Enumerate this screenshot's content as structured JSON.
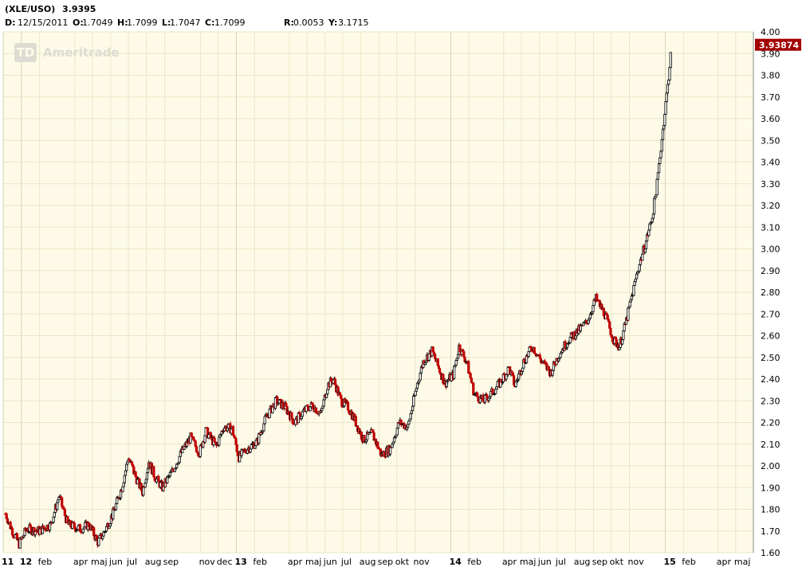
{
  "header": {
    "symbol": "(XLE/USO)",
    "last_value": "3.9395",
    "ohlc_prefix": "D:",
    "date": "12/15/2011",
    "open_label": "O:",
    "open": "1.7049",
    "high_label": "H:",
    "high": "1.7099",
    "low_label": "L:",
    "low": "1.7047",
    "close_label": "C:",
    "close": "1.7099",
    "range_label": "R:",
    "range": "0.0053",
    "y_label": "Y:",
    "y": "3.1715"
  },
  "watermark": {
    "logo_text": "TD",
    "brand_text": "Ameritrade"
  },
  "last_price_tag": "3.93874",
  "colors": {
    "background": "#ffffff",
    "plot_background": "#fdfbe8",
    "grid": "#ebe6c6",
    "major_grid": "#d8d2b4",
    "up": "#000000",
    "down": "#c00000",
    "price_tag": "#a30000"
  },
  "chart_data": {
    "type": "candlestick",
    "title": "",
    "xlabel": "",
    "ylabel": "",
    "ylim": [
      1.6,
      4.0
    ],
    "y_ticks": [
      "1.60",
      "1.70",
      "1.80",
      "1.90",
      "2.00",
      "2.10",
      "2.20",
      "2.30",
      "2.40",
      "2.50",
      "2.60",
      "2.70",
      "2.80",
      "2.90",
      "3.00",
      "3.10",
      "3.20",
      "3.30",
      "3.40",
      "3.50",
      "3.60",
      "3.70",
      "3.80",
      "3.90",
      "4.00"
    ],
    "x_ticks": [
      {
        "label": "11",
        "major": true
      },
      {
        "label": "12",
        "major": true
      },
      {
        "label": "feb",
        "major": false
      },
      {
        "label": "apr",
        "major": false
      },
      {
        "label": "maj",
        "major": false
      },
      {
        "label": "jun",
        "major": false
      },
      {
        "label": "jul",
        "major": false
      },
      {
        "label": "aug",
        "major": false
      },
      {
        "label": "sep",
        "major": false
      },
      {
        "label": "nov",
        "major": false
      },
      {
        "label": "dec",
        "major": false
      },
      {
        "label": "13",
        "major": true
      },
      {
        "label": "feb",
        "major": false
      },
      {
        "label": "apr",
        "major": false
      },
      {
        "label": "maj",
        "major": false
      },
      {
        "label": "jun",
        "major": false
      },
      {
        "label": "jul",
        "major": false
      },
      {
        "label": "aug",
        "major": false
      },
      {
        "label": "sep",
        "major": false
      },
      {
        "label": "okt",
        "major": false
      },
      {
        "label": "nov",
        "major": false
      },
      {
        "label": "14",
        "major": true
      },
      {
        "label": "feb",
        "major": false
      },
      {
        "label": "apr",
        "major": false
      },
      {
        "label": "maj",
        "major": false
      },
      {
        "label": "jun",
        "major": false
      },
      {
        "label": "jul",
        "major": false
      },
      {
        "label": "aug",
        "major": false
      },
      {
        "label": "sep",
        "major": false
      },
      {
        "label": "okt",
        "major": false
      },
      {
        "label": "nov",
        "major": false
      },
      {
        "label": "15",
        "major": true
      },
      {
        "label": "feb",
        "major": false
      },
      {
        "label": "apr",
        "major": false
      },
      {
        "label": "maj",
        "major": false
      }
    ],
    "time_range": [
      "2011-12-01",
      "2015-05-31"
    ],
    "series": [
      {
        "name": "XLE/USO",
        "points": [
          [
            "2011-12-05",
            1.78
          ],
          [
            "2011-12-15",
            1.71
          ],
          [
            "2011-12-28",
            1.64
          ],
          [
            "2012-01-10",
            1.71
          ],
          [
            "2012-01-31",
            1.7
          ],
          [
            "2012-02-20",
            1.73
          ],
          [
            "2012-03-05",
            1.86
          ],
          [
            "2012-03-20",
            1.73
          ],
          [
            "2012-04-10",
            1.71
          ],
          [
            "2012-04-25",
            1.73
          ],
          [
            "2012-05-10",
            1.65
          ],
          [
            "2012-05-20",
            1.69
          ],
          [
            "2012-06-05",
            1.78
          ],
          [
            "2012-06-20",
            1.9
          ],
          [
            "2012-07-01",
            2.04
          ],
          [
            "2012-07-15",
            1.94
          ],
          [
            "2012-07-25",
            1.88
          ],
          [
            "2012-08-05",
            2.02
          ],
          [
            "2012-08-15",
            1.95
          ],
          [
            "2012-08-28",
            1.9
          ],
          [
            "2012-09-15",
            1.98
          ],
          [
            "2012-10-01",
            2.07
          ],
          [
            "2012-10-15",
            2.13
          ],
          [
            "2012-10-30",
            2.06
          ],
          [
            "2012-11-10",
            2.16
          ],
          [
            "2012-11-28",
            2.09
          ],
          [
            "2012-12-10",
            2.18
          ],
          [
            "2012-12-25",
            2.17
          ],
          [
            "2013-01-05",
            2.04
          ],
          [
            "2013-01-20",
            2.08
          ],
          [
            "2013-02-05",
            2.11
          ],
          [
            "2013-02-20",
            2.22
          ],
          [
            "2013-03-10",
            2.3
          ],
          [
            "2013-03-25",
            2.27
          ],
          [
            "2013-04-10",
            2.2
          ],
          [
            "2013-04-25",
            2.25
          ],
          [
            "2013-05-10",
            2.28
          ],
          [
            "2013-05-25",
            2.24
          ],
          [
            "2013-06-05",
            2.37
          ],
          [
            "2013-06-15",
            2.4
          ],
          [
            "2013-06-28",
            2.3
          ],
          [
            "2013-07-10",
            2.27
          ],
          [
            "2013-07-20",
            2.22
          ],
          [
            "2013-08-05",
            2.12
          ],
          [
            "2013-08-20",
            2.15
          ],
          [
            "2013-09-05",
            2.05
          ],
          [
            "2013-09-20",
            2.08
          ],
          [
            "2013-10-05",
            2.2
          ],
          [
            "2013-10-20",
            2.18
          ],
          [
            "2013-11-05",
            2.38
          ],
          [
            "2013-11-15",
            2.48
          ],
          [
            "2013-11-30",
            2.53
          ],
          [
            "2013-12-10",
            2.46
          ],
          [
            "2013-12-22",
            2.38
          ],
          [
            "2014-01-05",
            2.42
          ],
          [
            "2014-01-15",
            2.55
          ],
          [
            "2014-01-28",
            2.48
          ],
          [
            "2014-02-10",
            2.33
          ],
          [
            "2014-02-25",
            2.3
          ],
          [
            "2014-03-10",
            2.33
          ],
          [
            "2014-03-25",
            2.38
          ],
          [
            "2014-04-10",
            2.45
          ],
          [
            "2014-04-20",
            2.37
          ],
          [
            "2014-05-05",
            2.48
          ],
          [
            "2014-05-20",
            2.55
          ],
          [
            "2014-06-05",
            2.48
          ],
          [
            "2014-06-20",
            2.43
          ],
          [
            "2014-07-05",
            2.52
          ],
          [
            "2014-07-20",
            2.58
          ],
          [
            "2014-08-05",
            2.62
          ],
          [
            "2014-08-20",
            2.66
          ],
          [
            "2014-09-05",
            2.77
          ],
          [
            "2014-09-20",
            2.7
          ],
          [
            "2014-10-05",
            2.58
          ],
          [
            "2014-10-15",
            2.55
          ],
          [
            "2014-10-25",
            2.65
          ],
          [
            "2014-11-05",
            2.78
          ],
          [
            "2014-11-15",
            2.9
          ],
          [
            "2014-11-28",
            3.02
          ],
          [
            "2014-12-10",
            3.15
          ],
          [
            "2014-12-18",
            3.3
          ],
          [
            "2014-12-28",
            3.55
          ],
          [
            "2015-01-05",
            3.75
          ],
          [
            "2015-01-12",
            3.94
          ]
        ]
      }
    ],
    "last_value": 3.93874,
    "grid": true,
    "legend": "none"
  }
}
